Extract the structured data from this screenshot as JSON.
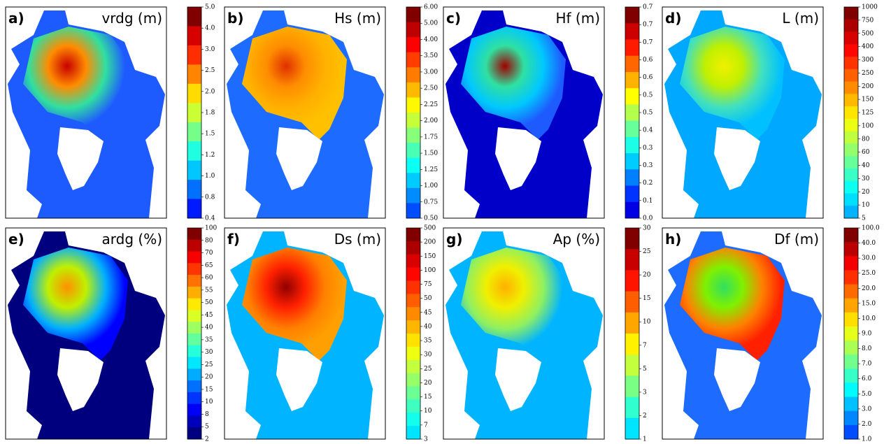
{
  "panels": [
    {
      "letter": "a)",
      "title": "vrdg (m)",
      "colorbar": [
        "5.0",
        "4.0",
        "3.0",
        "2.5",
        "2.0",
        "1.8",
        "1.5",
        "1.2",
        "1.0",
        "0.8",
        "0.4"
      ]
    },
    {
      "letter": "b)",
      "title": "Hs (m)",
      "colorbar": [
        "6.00",
        "5.00",
        "4.00",
        "3.50",
        "3.00",
        "2.50",
        "2.25",
        "2.00",
        "1.75",
        "1.50",
        "1.25",
        "1.00",
        "0.75",
        "0.50"
      ]
    },
    {
      "letter": "c)",
      "title": "Hf (m)",
      "colorbar": [
        "0.7",
        "0.7",
        "0.7",
        "0.6",
        "0.6",
        "0.5",
        "0.5",
        "0.4",
        "0.3",
        "0.3",
        "0.2",
        "0.1",
        "0.0"
      ]
    },
    {
      "letter": "d)",
      "title": "L (m)",
      "colorbar": [
        "1000",
        "750",
        "500",
        "400",
        "300",
        "250",
        "200",
        "150",
        "125",
        "100",
        "80",
        "60",
        "40",
        "30",
        "20",
        "10",
        "5"
      ]
    },
    {
      "letter": "e)",
      "title": "ardg (%)",
      "colorbar": [
        "100",
        "80",
        "70",
        "65",
        "60",
        "55",
        "50",
        "45",
        "40",
        "35",
        "30",
        "25",
        "20",
        "15",
        "10",
        "8",
        "5",
        "2"
      ]
    },
    {
      "letter": "f)",
      "title": "Ds (m)",
      "colorbar": [
        "500",
        "200",
        "150",
        "100",
        "75",
        "50",
        "45",
        "40",
        "35",
        "30",
        "25",
        "20",
        "15",
        "10",
        "7",
        "3"
      ]
    },
    {
      "letter": "g)",
      "title": "Ap (%)",
      "colorbar": [
        "30",
        "25",
        "20",
        "15",
        "10",
        "7",
        "5",
        "3",
        "2",
        "1"
      ]
    },
    {
      "letter": "h)",
      "title": "Df (m)",
      "colorbar": [
        "100.0",
        "40.0",
        "30.0",
        "25.0",
        "20.0",
        "15.0",
        "10.0",
        "9.0",
        "8.0",
        "7.0",
        "6.0",
        "5.0",
        "3.0",
        "2.0",
        "1.0"
      ]
    }
  ]
}
